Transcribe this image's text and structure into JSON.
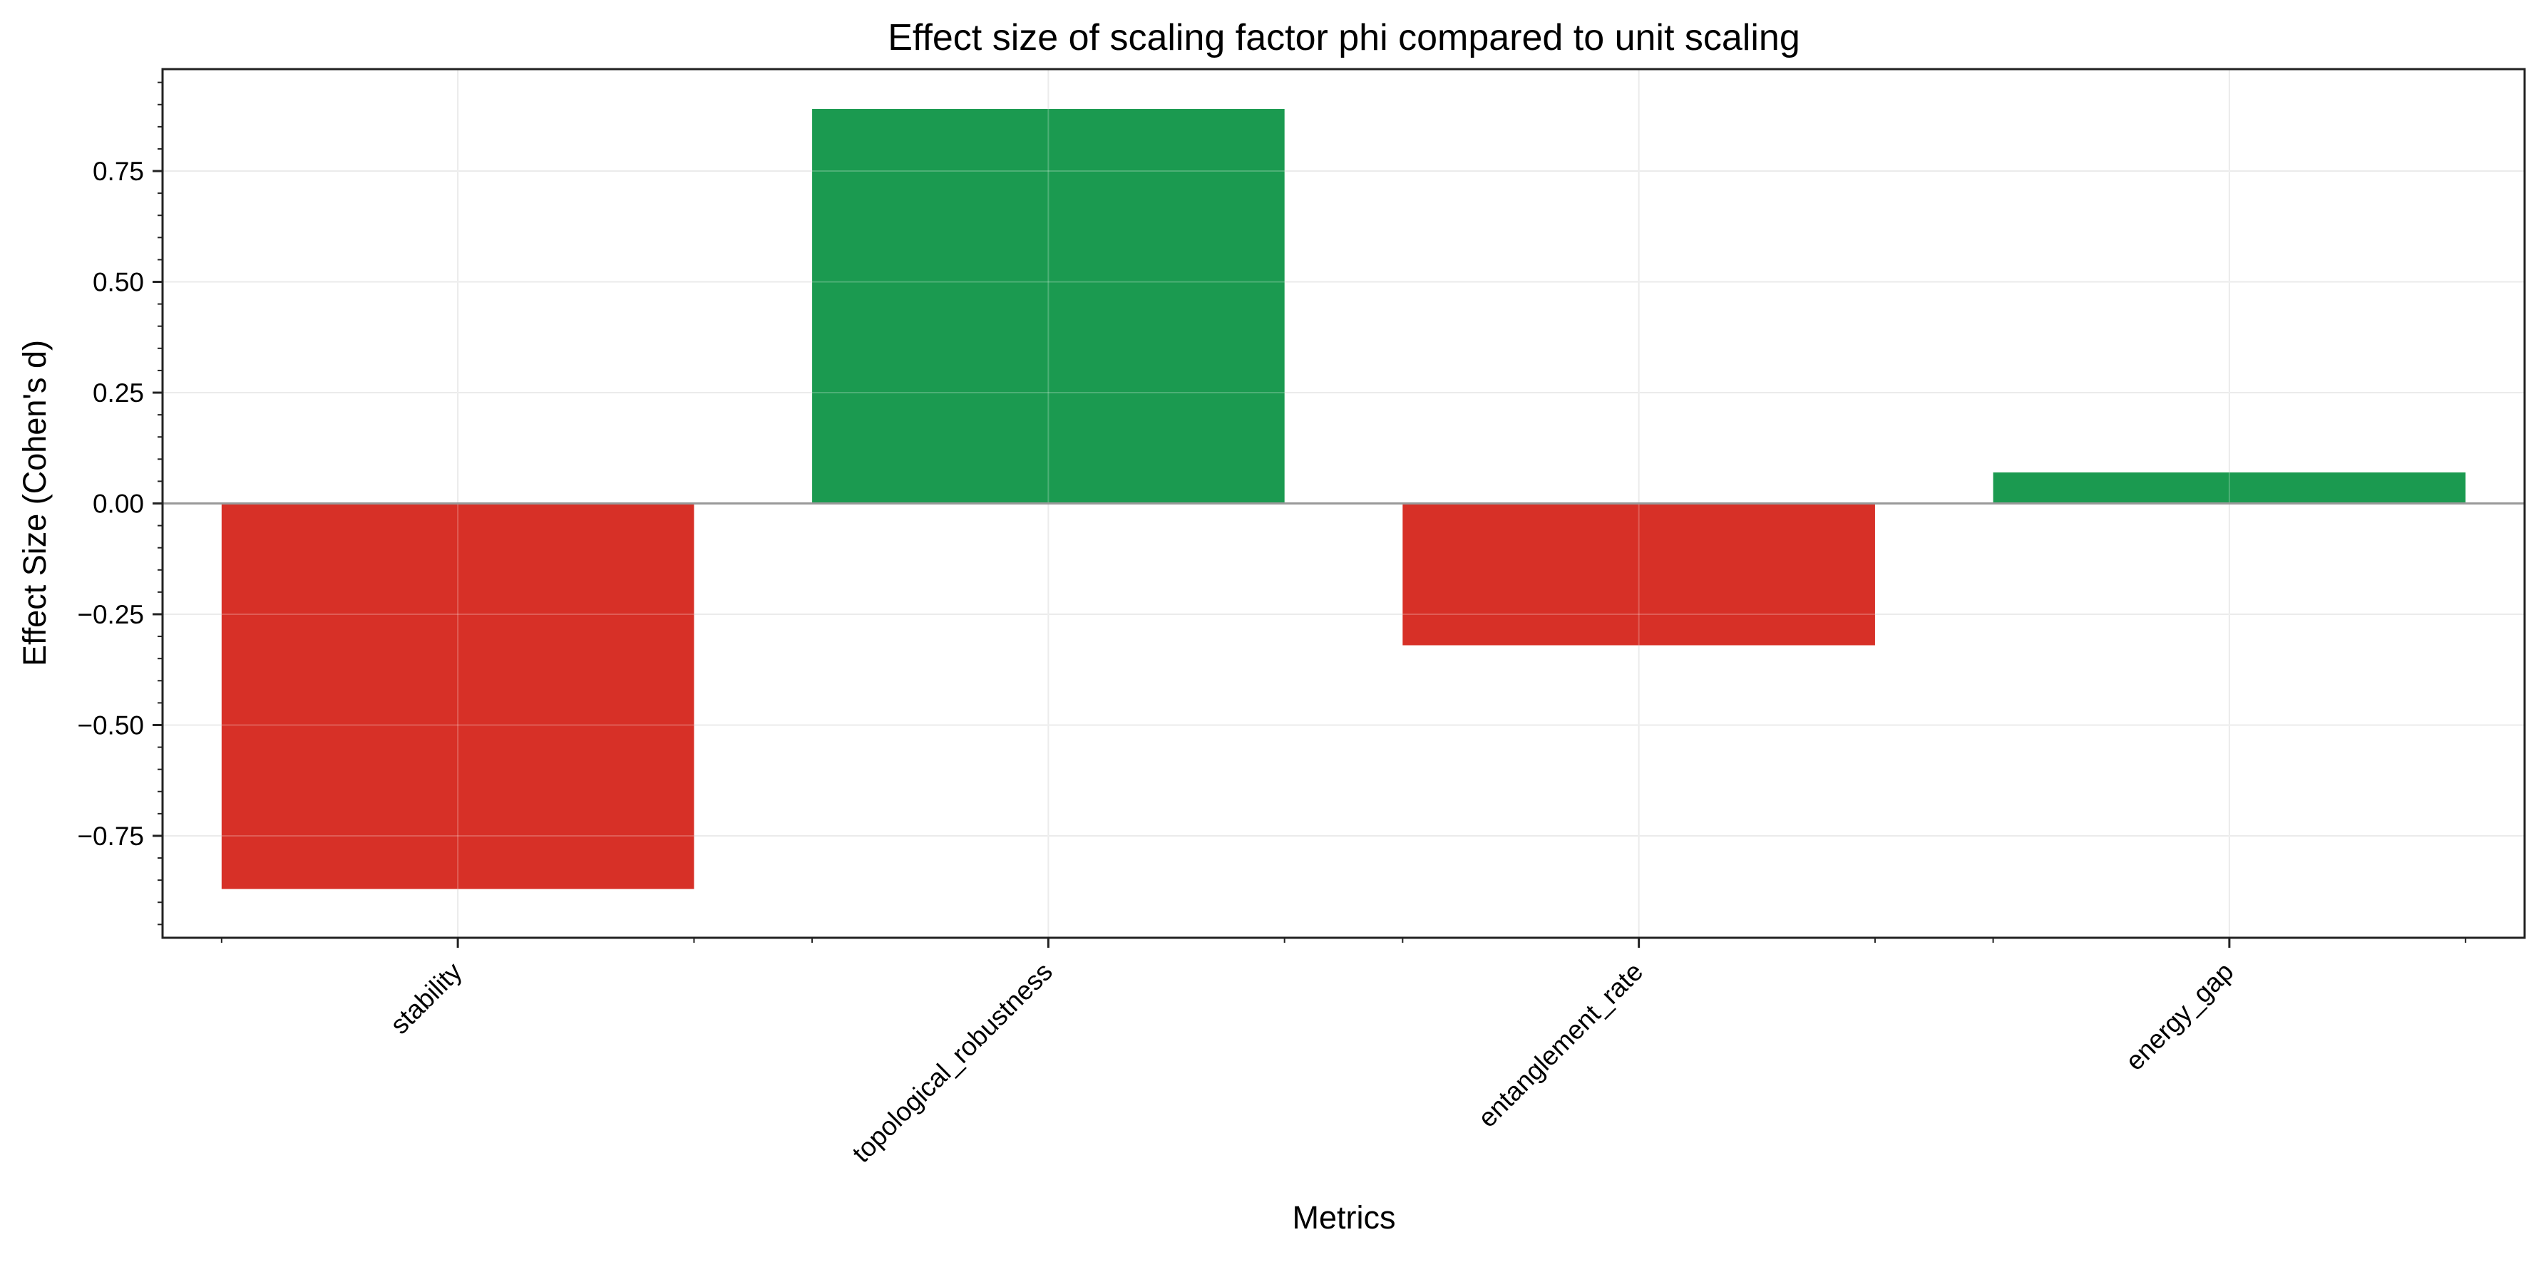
{
  "chart_data": {
    "type": "bar",
    "title": "Effect size of scaling factor phi compared to unit scaling",
    "xlabel": "Metrics",
    "ylabel": "Effect Size (Cohen's d)",
    "categories": [
      "stability",
      "topological_robustness",
      "entanglement_rate",
      "energy_gap"
    ],
    "values": [
      -0.87,
      0.89,
      -0.32,
      0.07
    ],
    "ylim": [
      -0.98,
      0.98
    ],
    "yticks": [
      -0.75,
      -0.5,
      -0.25,
      0.0,
      0.25,
      0.5,
      0.75
    ],
    "ytick_labels": [
      "−0.75",
      "−0.50",
      "−0.25",
      "0.00",
      "0.25",
      "0.50",
      "0.75"
    ],
    "grid": true,
    "zero_line": true,
    "colors": {
      "positive": "#1b9a50",
      "negative": "#d73027",
      "zero_line": "#999999",
      "grid": "#e6e6e6",
      "axes": "#222222"
    }
  }
}
